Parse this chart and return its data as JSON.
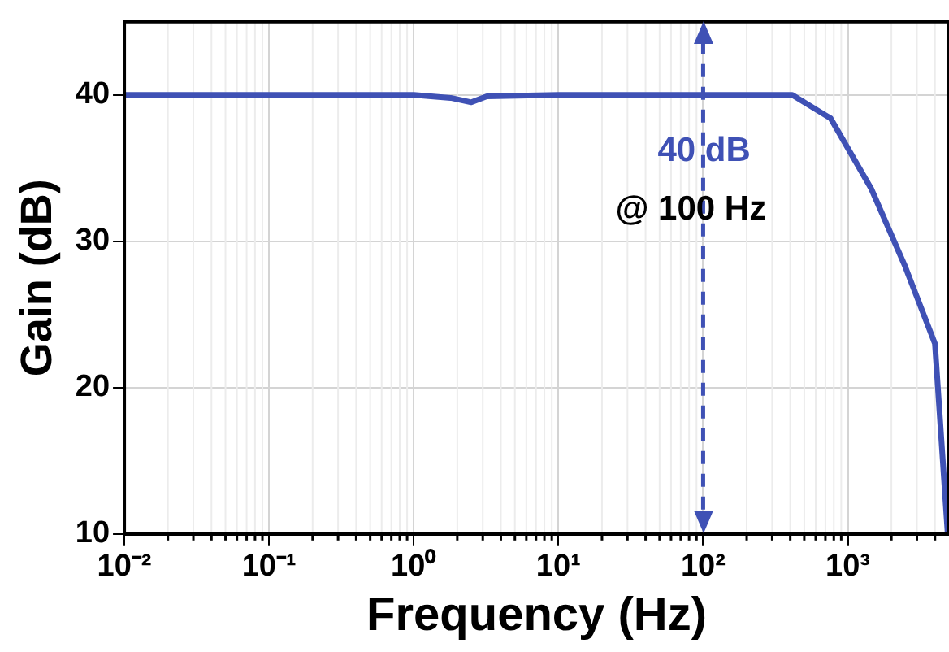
{
  "chart_data": {
    "type": "line",
    "xlabel": "Frequency (Hz)",
    "ylabel": "Gain (dB)",
    "log": "x",
    "grid": true,
    "legend": false,
    "marker": "none",
    "line_style": "solid",
    "xlim": [
      0.01,
      5000
    ],
    "ylim": [
      10,
      45
    ],
    "xticks": [
      {
        "value": 0.01,
        "label": "10⁻²"
      },
      {
        "value": 0.1,
        "label": "10⁻¹"
      },
      {
        "value": 1,
        "label": "10⁰"
      },
      {
        "value": 10,
        "label": "10¹"
      },
      {
        "value": 100,
        "label": "10²"
      },
      {
        "value": 1000,
        "label": "10³"
      }
    ],
    "yticks": [
      10,
      20,
      30,
      40
    ],
    "x": [
      0.01,
      0.1,
      1,
      1.8,
      2.5,
      3.2,
      10,
      100,
      413,
      760,
      1450,
      2460,
      4000,
      4900
    ],
    "series": [
      {
        "color": "#3f51b5",
        "values": [
          40,
          40,
          40,
          39.8,
          39.5,
          39.9,
          40,
          40,
          40,
          38.4,
          33.6,
          28.4,
          23,
          10
        ]
      }
    ],
    "ref_lines": [
      {
        "axis": "x",
        "value": 100,
        "color": "#3f51b5",
        "line_style": "dashed"
      }
    ],
    "annotations": [
      "40 dB",
      "@ 100 Hz"
    ]
  }
}
